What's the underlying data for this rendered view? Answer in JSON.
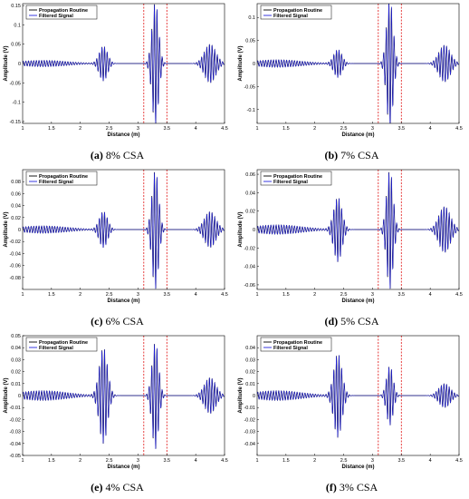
{
  "chart_data": [
    {
      "type": "line",
      "panel_label": "(a)",
      "caption_text": "8% CSA",
      "xlabel": "Distance (m)",
      "ylabel": "Amplitude (V)",
      "xlim": [
        1,
        4.5
      ],
      "x_ticks": [
        "1",
        "1.5",
        "2",
        "2.5",
        "3",
        "3.5",
        "4",
        "4.5"
      ],
      "ylim": [
        -0.155,
        0.155
      ],
      "y_ticks": [
        -0.15,
        -0.1,
        -0.05,
        0,
        0.05,
        0.1,
        0.15
      ],
      "y_tick_labels": [
        "-0.15",
        "-0.1",
        "-0.05",
        "0",
        "0.05",
        "0.1",
        "0.15"
      ],
      "vlines": [
        3.1,
        3.5
      ],
      "series": [
        {
          "name": "Propagation Routine",
          "color": "#000000",
          "packets": [
            {
              "center": 1.35,
              "amp": 0.008,
              "width": 0.6,
              "freq": 22
            },
            {
              "center": 2.4,
              "amp": 0.045,
              "width": 0.1,
              "freq": 22
            },
            {
              "center": 3.3,
              "amp": 0.16,
              "width": 0.08,
              "freq": 22
            },
            {
              "center": 4.25,
              "amp": 0.05,
              "width": 0.14,
              "freq": 22
            }
          ]
        },
        {
          "name": "Filtered Signal",
          "color": "#2222dd",
          "packets": [
            {
              "center": 1.35,
              "amp": 0.008,
              "width": 0.6,
              "freq": 22
            },
            {
              "center": 2.4,
              "amp": 0.045,
              "width": 0.1,
              "freq": 22
            },
            {
              "center": 3.3,
              "amp": 0.16,
              "width": 0.08,
              "freq": 22
            },
            {
              "center": 4.25,
              "amp": 0.05,
              "width": 0.14,
              "freq": 22
            }
          ]
        }
      ]
    },
    {
      "type": "line",
      "panel_label": "(b)",
      "caption_text": "7% CSA",
      "xlabel": "Distance (m)",
      "ylabel": "Amplitude (V)",
      "xlim": [
        1,
        4.5
      ],
      "x_ticks": [
        "1",
        "1.5",
        "2",
        "2.5",
        "3",
        "3.5",
        "4",
        "4.5"
      ],
      "ylim": [
        -0.13,
        0.13
      ],
      "y_ticks": [
        -0.1,
        -0.05,
        0,
        0.05,
        0.1
      ],
      "y_tick_labels": [
        "-0.1",
        "-0.05",
        "0",
        "0.05",
        "0.1"
      ],
      "vlines": [
        3.1,
        3.5
      ],
      "series": [
        {
          "name": "Propagation Routine",
          "color": "#000000",
          "packets": [
            {
              "center": 1.35,
              "amp": 0.008,
              "width": 0.6,
              "freq": 22
            },
            {
              "center": 2.4,
              "amp": 0.03,
              "width": 0.1,
              "freq": 22
            },
            {
              "center": 3.3,
              "amp": 0.14,
              "width": 0.08,
              "freq": 22
            },
            {
              "center": 4.25,
              "amp": 0.04,
              "width": 0.14,
              "freq": 22
            }
          ]
        },
        {
          "name": "Filtered Signal",
          "color": "#2222dd",
          "packets": [
            {
              "center": 1.35,
              "amp": 0.008,
              "width": 0.6,
              "freq": 22
            },
            {
              "center": 2.4,
              "amp": 0.03,
              "width": 0.1,
              "freq": 22
            },
            {
              "center": 3.3,
              "amp": 0.14,
              "width": 0.08,
              "freq": 22
            },
            {
              "center": 4.25,
              "amp": 0.04,
              "width": 0.14,
              "freq": 22
            }
          ]
        }
      ]
    },
    {
      "type": "line",
      "panel_label": "(c)",
      "caption_text": "6% CSA",
      "xlabel": "Distance (m)",
      "ylabel": "Amplitude (V)",
      "xlim": [
        1,
        4.5
      ],
      "x_ticks": [
        "1",
        "1.5",
        "2",
        "2.5",
        "3",
        "3.5",
        "4",
        "4.5"
      ],
      "ylim": [
        -0.1,
        0.1
      ],
      "y_ticks": [
        -0.08,
        -0.06,
        -0.04,
        -0.02,
        0,
        0.02,
        0.04,
        0.06,
        0.08
      ],
      "y_tick_labels": [
        "-0.08",
        "-0.06",
        "-0.04",
        "-0.02",
        "0",
        "0.02",
        "0.04",
        "0.06",
        "0.08"
      ],
      "vlines": [
        3.1,
        3.5
      ],
      "series": [
        {
          "name": "Propagation Routine",
          "color": "#000000",
          "packets": [
            {
              "center": 1.35,
              "amp": 0.006,
              "width": 0.6,
              "freq": 22
            },
            {
              "center": 2.4,
              "amp": 0.03,
              "width": 0.1,
              "freq": 22
            },
            {
              "center": 3.3,
              "amp": 0.1,
              "width": 0.08,
              "freq": 22
            },
            {
              "center": 4.25,
              "amp": 0.03,
              "width": 0.14,
              "freq": 22
            }
          ]
        },
        {
          "name": "Filtered Signal",
          "color": "#2222dd",
          "packets": [
            {
              "center": 1.35,
              "amp": 0.006,
              "width": 0.6,
              "freq": 22
            },
            {
              "center": 2.4,
              "amp": 0.03,
              "width": 0.1,
              "freq": 22
            },
            {
              "center": 3.3,
              "amp": 0.1,
              "width": 0.08,
              "freq": 22
            },
            {
              "center": 4.25,
              "amp": 0.03,
              "width": 0.14,
              "freq": 22
            }
          ]
        }
      ]
    },
    {
      "type": "line",
      "panel_label": "(d)",
      "caption_text": "5% CSA",
      "xlabel": "Distance (m)",
      "ylabel": "Amplitude (V)",
      "xlim": [
        1,
        4.5
      ],
      "x_ticks": [
        "1",
        "1.5",
        "2",
        "2.5",
        "3",
        "3.5",
        "4",
        "4.5"
      ],
      "ylim": [
        -0.065,
        0.065
      ],
      "y_ticks": [
        -0.06,
        -0.04,
        -0.02,
        0,
        0.02,
        0.04,
        0.06
      ],
      "y_tick_labels": [
        "-0.06",
        "-0.04",
        "-0.02",
        "0",
        "0.02",
        "0.04",
        "0.06"
      ],
      "vlines": [
        3.1,
        3.5
      ],
      "series": [
        {
          "name": "Propagation Routine",
          "color": "#000000",
          "packets": [
            {
              "center": 1.35,
              "amp": 0.005,
              "width": 0.6,
              "freq": 22
            },
            {
              "center": 2.4,
              "amp": 0.035,
              "width": 0.1,
              "freq": 22
            },
            {
              "center": 3.3,
              "amp": 0.065,
              "width": 0.08,
              "freq": 22
            },
            {
              "center": 4.25,
              "amp": 0.025,
              "width": 0.14,
              "freq": 22
            }
          ]
        },
        {
          "name": "Filtered Signal",
          "color": "#2222dd",
          "packets": [
            {
              "center": 1.35,
              "amp": 0.005,
              "width": 0.6,
              "freq": 22
            },
            {
              "center": 2.4,
              "amp": 0.035,
              "width": 0.1,
              "freq": 22
            },
            {
              "center": 3.3,
              "amp": 0.065,
              "width": 0.08,
              "freq": 22
            },
            {
              "center": 4.25,
              "amp": 0.025,
              "width": 0.14,
              "freq": 22
            }
          ]
        }
      ]
    },
    {
      "type": "line",
      "panel_label": "(e)",
      "caption_text": "4% CSA",
      "xlabel": "Distance (m)",
      "ylabel": "Amplitude (V)",
      "xlim": [
        1,
        4.5
      ],
      "x_ticks": [
        "1",
        "1.5",
        "2",
        "2.5",
        "3",
        "3.5",
        "4",
        "4.5"
      ],
      "ylim": [
        -0.05,
        0.05
      ],
      "y_ticks": [
        -0.05,
        -0.04,
        -0.03,
        -0.02,
        -0.01,
        0,
        0.01,
        0.02,
        0.03,
        0.04,
        0.05
      ],
      "y_tick_labels": [
        "-0.05",
        "-0.04",
        "-0.03",
        "-0.02",
        "-0.01",
        "0",
        "0.01",
        "0.02",
        "0.03",
        "0.04",
        "0.05"
      ],
      "vlines": [
        3.1,
        3.5
      ],
      "series": [
        {
          "name": "Propagation Routine",
          "color": "#000000",
          "packets": [
            {
              "center": 1.35,
              "amp": 0.004,
              "width": 0.6,
              "freq": 22
            },
            {
              "center": 2.4,
              "amp": 0.04,
              "width": 0.1,
              "freq": 22
            },
            {
              "center": 3.3,
              "amp": 0.045,
              "width": 0.08,
              "freq": 22
            },
            {
              "center": 4.25,
              "amp": 0.015,
              "width": 0.14,
              "freq": 22
            }
          ]
        },
        {
          "name": "Filtered Signal",
          "color": "#2222dd",
          "packets": [
            {
              "center": 1.35,
              "amp": 0.004,
              "width": 0.6,
              "freq": 22
            },
            {
              "center": 2.4,
              "amp": 0.04,
              "width": 0.1,
              "freq": 22
            },
            {
              "center": 3.3,
              "amp": 0.045,
              "width": 0.08,
              "freq": 22
            },
            {
              "center": 4.25,
              "amp": 0.015,
              "width": 0.14,
              "freq": 22
            }
          ]
        }
      ]
    },
    {
      "type": "line",
      "panel_label": "(f)",
      "caption_text": "3% CSA",
      "xlabel": "Distance (m)",
      "ylabel": "Amplitude (V)",
      "xlim": [
        1,
        4.5
      ],
      "x_ticks": [
        "1",
        "1.5",
        "2",
        "2.5",
        "3",
        "3.5",
        "4",
        "4.5"
      ],
      "ylim": [
        -0.05,
        0.05
      ],
      "y_ticks": [
        -0.04,
        -0.03,
        -0.02,
        -0.01,
        0,
        0.01,
        0.02,
        0.03,
        0.04
      ],
      "y_tick_labels": [
        "-0.04",
        "-0.03",
        "-0.02",
        "-0.01",
        "0",
        "0.01",
        "0.02",
        "0.03",
        "0.04"
      ],
      "vlines": [
        3.1,
        3.5
      ],
      "series": [
        {
          "name": "Propagation Routine",
          "color": "#000000",
          "packets": [
            {
              "center": 1.35,
              "amp": 0.004,
              "width": 0.6,
              "freq": 22
            },
            {
              "center": 2.4,
              "amp": 0.035,
              "width": 0.1,
              "freq": 22
            },
            {
              "center": 3.3,
              "amp": 0.025,
              "width": 0.08,
              "freq": 22
            },
            {
              "center": 4.25,
              "amp": 0.01,
              "width": 0.14,
              "freq": 22
            }
          ]
        },
        {
          "name": "Filtered Signal",
          "color": "#2222dd",
          "packets": [
            {
              "center": 1.35,
              "amp": 0.004,
              "width": 0.6,
              "freq": 22
            },
            {
              "center": 2.4,
              "amp": 0.035,
              "width": 0.1,
              "freq": 22
            },
            {
              "center": 3.3,
              "amp": 0.025,
              "width": 0.08,
              "freq": 22
            },
            {
              "center": 4.25,
              "amp": 0.01,
              "width": 0.14,
              "freq": 22
            }
          ]
        }
      ]
    }
  ]
}
